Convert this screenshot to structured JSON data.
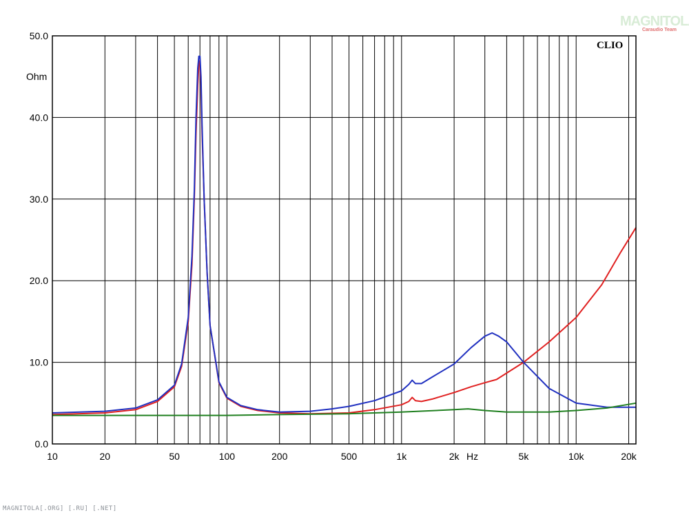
{
  "brand": {
    "logo_text": "MAGNITOLA",
    "logo_sub": "Caraudio Team",
    "watermark": "CLIO"
  },
  "footer": {
    "text": "MAGNITOLA[.ORG] [.RU] [.NET]"
  },
  "chart_data": {
    "type": "line",
    "title": "",
    "xlabel": "Hz",
    "ylabel": "Ohm",
    "xscale": "log",
    "xlim": [
      10,
      22000
    ],
    "ylim": [
      0,
      50
    ],
    "grid": true,
    "x_ticks": [
      {
        "value": 10,
        "label": "10"
      },
      {
        "value": 20,
        "label": "20"
      },
      {
        "value": 50,
        "label": "50"
      },
      {
        "value": 100,
        "label": "100"
      },
      {
        "value": 200,
        "label": "200"
      },
      {
        "value": 500,
        "label": "500"
      },
      {
        "value": 1000,
        "label": "1k"
      },
      {
        "value": 2000,
        "label": "2k"
      },
      {
        "value": 5000,
        "label": "5k"
      },
      {
        "value": 10000,
        "label": "10k"
      },
      {
        "value": 20000,
        "label": "20k"
      }
    ],
    "y_ticks": [
      {
        "value": 0,
        "label": "0.0"
      },
      {
        "value": 10,
        "label": "10.0"
      },
      {
        "value": 20,
        "label": "20.0"
      },
      {
        "value": 30,
        "label": "30.0"
      },
      {
        "value": 40,
        "label": "40.0"
      },
      {
        "value": 50,
        "label": "50.0"
      }
    ],
    "series": [
      {
        "color": "#e02020",
        "points": [
          [
            10,
            3.6
          ],
          [
            20,
            3.8
          ],
          [
            30,
            4.2
          ],
          [
            40,
            5.2
          ],
          [
            50,
            7.0
          ],
          [
            55,
            9.5
          ],
          [
            60,
            15
          ],
          [
            63,
            22
          ],
          [
            65,
            30
          ],
          [
            66.5,
            38
          ],
          [
            68,
            44
          ],
          [
            69,
            46.5
          ],
          [
            70,
            47
          ],
          [
            71,
            44
          ],
          [
            72,
            38
          ],
          [
            74,
            30
          ],
          [
            77,
            21
          ],
          [
            80,
            14.5
          ],
          [
            90,
            7.5
          ],
          [
            100,
            5.6
          ],
          [
            120,
            4.6
          ],
          [
            150,
            4.1
          ],
          [
            200,
            3.8
          ],
          [
            300,
            3.7
          ],
          [
            500,
            3.8
          ],
          [
            700,
            4.2
          ],
          [
            1000,
            4.8
          ],
          [
            1100,
            5.2
          ],
          [
            1150,
            5.7
          ],
          [
            1200,
            5.3
          ],
          [
            1300,
            5.2
          ],
          [
            1500,
            5.5
          ],
          [
            2000,
            6.3
          ],
          [
            2500,
            7.0
          ],
          [
            3000,
            7.5
          ],
          [
            3500,
            7.9
          ],
          [
            5000,
            10.0
          ],
          [
            7000,
            12.5
          ],
          [
            10000,
            15.5
          ],
          [
            14000,
            19.5
          ],
          [
            18000,
            23.5
          ],
          [
            22000,
            26.5
          ]
        ]
      },
      {
        "color": "#2030c0",
        "points": [
          [
            10,
            3.8
          ],
          [
            20,
            4.0
          ],
          [
            30,
            4.4
          ],
          [
            40,
            5.4
          ],
          [
            50,
            7.2
          ],
          [
            55,
            9.8
          ],
          [
            60,
            15.5
          ],
          [
            63,
            23
          ],
          [
            65,
            31
          ],
          [
            66.5,
            40
          ],
          [
            68,
            46
          ],
          [
            69,
            47.5
          ],
          [
            70,
            47.5
          ],
          [
            71,
            45
          ],
          [
            72,
            39
          ],
          [
            74,
            30
          ],
          [
            77,
            21
          ],
          [
            80,
            14.5
          ],
          [
            90,
            7.6
          ],
          [
            100,
            5.7
          ],
          [
            120,
            4.7
          ],
          [
            150,
            4.2
          ],
          [
            200,
            3.9
          ],
          [
            300,
            4.0
          ],
          [
            400,
            4.3
          ],
          [
            500,
            4.6
          ],
          [
            700,
            5.3
          ],
          [
            1000,
            6.5
          ],
          [
            1100,
            7.3
          ],
          [
            1150,
            7.8
          ],
          [
            1200,
            7.4
          ],
          [
            1300,
            7.4
          ],
          [
            1500,
            8.2
          ],
          [
            2000,
            9.8
          ],
          [
            2500,
            11.8
          ],
          [
            3000,
            13.2
          ],
          [
            3300,
            13.6
          ],
          [
            3600,
            13.2
          ],
          [
            4000,
            12.5
          ],
          [
            5000,
            10.0
          ],
          [
            7000,
            6.8
          ],
          [
            10000,
            5.0
          ],
          [
            15000,
            4.5
          ],
          [
            22000,
            4.5
          ]
        ]
      },
      {
        "color": "#208020",
        "points": [
          [
            10,
            3.5
          ],
          [
            50,
            3.5
          ],
          [
            100,
            3.5
          ],
          [
            200,
            3.6
          ],
          [
            500,
            3.7
          ],
          [
            1000,
            3.9
          ],
          [
            2000,
            4.2
          ],
          [
            2400,
            4.3
          ],
          [
            3000,
            4.1
          ],
          [
            4000,
            3.9
          ],
          [
            7000,
            3.9
          ],
          [
            10000,
            4.1
          ],
          [
            15000,
            4.4
          ],
          [
            22000,
            5.0
          ]
        ]
      }
    ]
  }
}
